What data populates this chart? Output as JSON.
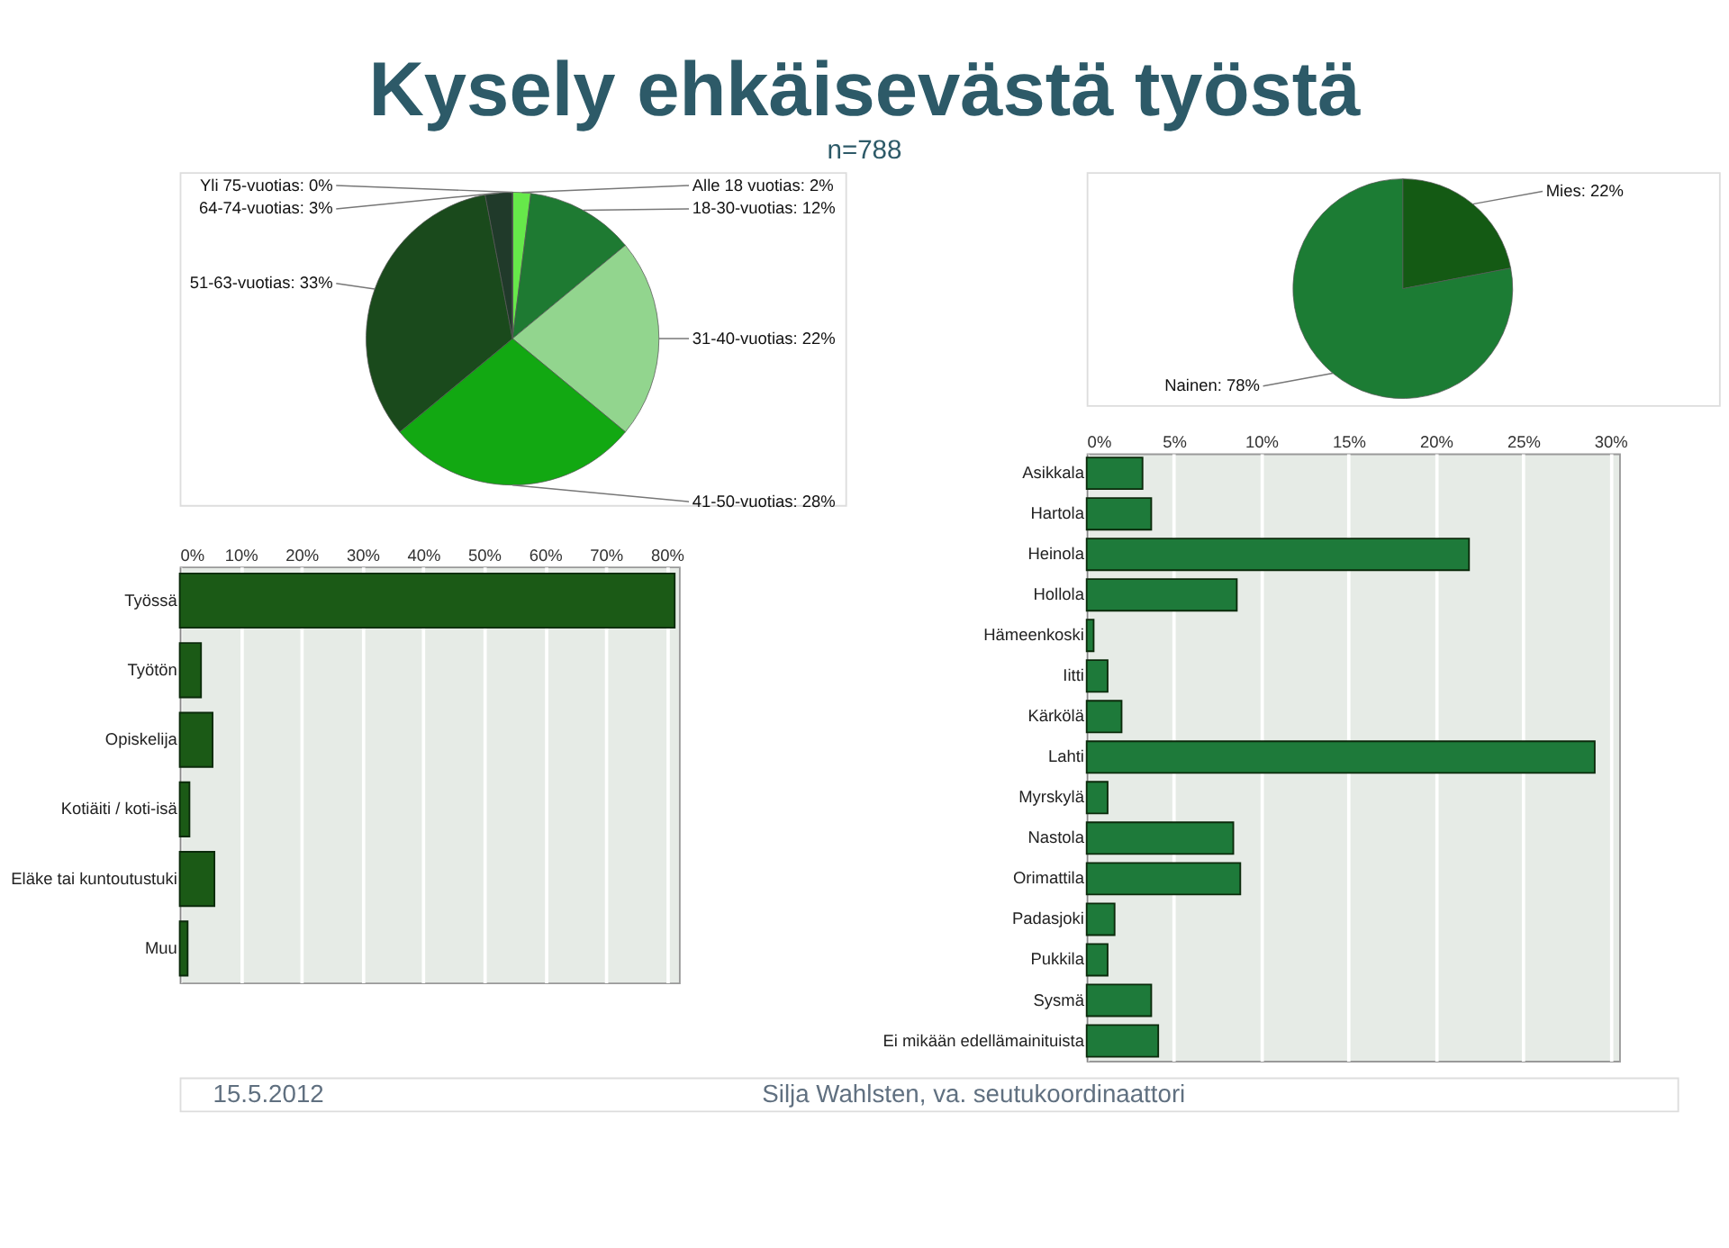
{
  "chart_data": [
    {
      "type": "pie",
      "title": "Kysely ehkäisevästä työstä",
      "subtitle": "n=788",
      "categories": [
        "Alle 18 vuotias: 2%",
        "18-30-vuotias: 12%",
        "31-40-vuotias: 22%",
        "41-50-vuotias: 28%",
        "51-63-vuotias: 33%",
        "64-74-vuotias: 3%",
        "Yli 75-vuotias: 0%"
      ],
      "values": [
        2,
        12,
        22,
        28,
        33,
        3,
        0
      ],
      "colors": [
        "#66e84a",
        "#1e7a32",
        "#92d58e",
        "#12a812",
        "#1a4a1c",
        "#203a2a",
        "#3a5a3a"
      ]
    },
    {
      "type": "pie",
      "categories": [
        "Mies: 22%",
        "Nainen: 78%"
      ],
      "values": [
        22,
        78
      ],
      "colors": [
        "#145a14",
        "#1c7c34"
      ]
    },
    {
      "type": "bar",
      "orientation": "horizontal",
      "categories": [
        "Työssä",
        "Työtön",
        "Opiskelija",
        "Kotiäiti / koti-isä",
        "Eläke tai kuntoutustuki",
        "Muu"
      ],
      "values": [
        81.3,
        3.5,
        5.4,
        1.6,
        5.7,
        1.3
      ],
      "color": "#1b5a16",
      "xlim": [
        0,
        82
      ],
      "xticks": [
        {
          "value": 0,
          "label": "0%"
        },
        {
          "value": 10,
          "label": "10%"
        },
        {
          "value": 20,
          "label": "20%"
        },
        {
          "value": 30,
          "label": "30%"
        },
        {
          "value": 40,
          "label": "40%"
        },
        {
          "value": 50,
          "label": "50%"
        },
        {
          "value": 60,
          "label": "60%"
        },
        {
          "value": 70,
          "label": "70%"
        },
        {
          "value": 80,
          "label": "80%"
        }
      ],
      "grid": "x"
    },
    {
      "type": "bar",
      "orientation": "horizontal",
      "categories": [
        "Asikkala",
        "Hartola",
        "Heinola",
        "Hollola",
        "Hämeenkoski",
        "Iitti",
        "Kärkölä",
        "Lahti",
        "Myrskylä",
        "Nastola",
        "Orimattila",
        "Padasjoki",
        "Pukkila",
        "Sysmä",
        "Ei mikään edellämainituista"
      ],
      "values": [
        3.2,
        3.7,
        21.9,
        8.6,
        0.4,
        1.2,
        2.0,
        29.1,
        1.2,
        8.4,
        8.8,
        1.6,
        1.2,
        3.7,
        4.1
      ],
      "color": "#1e7a3a",
      "xlim": [
        0,
        30.5
      ],
      "xticks": [
        {
          "value": 0,
          "label": "0%"
        },
        {
          "value": 5,
          "label": "5%"
        },
        {
          "value": 10,
          "label": "10%"
        },
        {
          "value": 15,
          "label": "15%"
        },
        {
          "value": 20,
          "label": "20%"
        },
        {
          "value": 25,
          "label": "25%"
        },
        {
          "value": 30,
          "label": "30%"
        }
      ],
      "grid": "x",
      "annotations": [
        "15.5.2012",
        "Silja Wahlsten, va. seutukoordinaattori"
      ]
    }
  ]
}
